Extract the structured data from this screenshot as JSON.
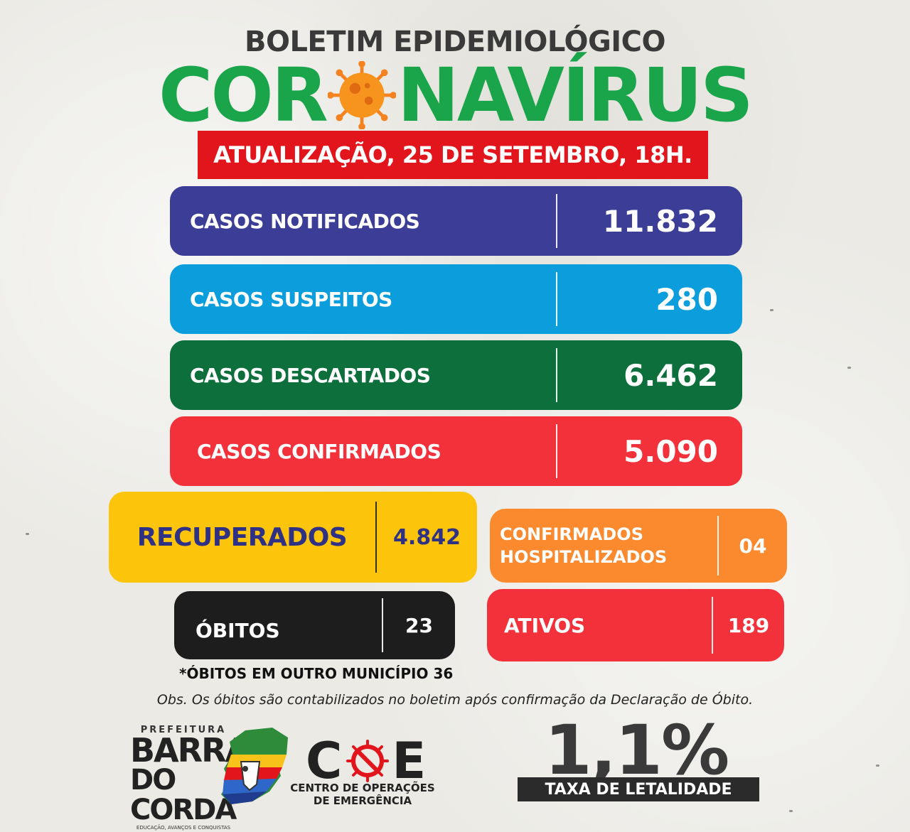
{
  "header": {
    "bulletin_title": "BOLETIM EPIDEMIOLÓGICO",
    "word_left": "COR",
    "word_right": "NAVÍRUS",
    "update": "ATUALIZAÇÃO, 25 DE SETEMBRO, 18H."
  },
  "rows": [
    {
      "label": "CASOS NOTIFICADOS",
      "value": "11.832",
      "color": "#3b3d96"
    },
    {
      "label": "CASOS SUSPEITOS",
      "value": "280",
      "color": "#0b9ddc"
    },
    {
      "label": "CASOS DESCARTADOS",
      "value": "6.462",
      "color": "#0d6f3c"
    },
    {
      "label": "CASOS CONFIRMADOS",
      "value": "5.090",
      "color": "#f2313b"
    }
  ],
  "recuperados": {
    "label": "RECUPERADOS",
    "value": "4.842",
    "color": "#fcc50b",
    "text_color": "#2f3184"
  },
  "hospitalizados": {
    "label_line1": "CONFIRMADOS",
    "label_line2": "HOSPITALIZADOS",
    "value": "04",
    "color": "#fb8a2e"
  },
  "obitos": {
    "label": "ÓBITOS",
    "value": "23",
    "color": "#1d1d1d"
  },
  "ativos": {
    "label": "ATIVOS",
    "value": "189",
    "color": "#f2313b"
  },
  "notes": {
    "outro_municipio": "*ÓBITOS EM OUTRO MUNICÍPIO  36",
    "obs": "Obs. Os óbitos são contabilizados no boletim após confirmação da Declaração de Óbito."
  },
  "footer": {
    "prefeitura": "PREFEITURA",
    "barra": "BARRA",
    "do_corda": "DO CORDA",
    "tagline": "EDUCAÇÃO, AVANÇOS E CONQUISTAS",
    "coe_c": "C",
    "coe_e": "E",
    "coe_line1": "CENTRO DE OPERAÇÕES",
    "coe_line2": "DE EMERGÊNCIA",
    "rate_value": "1,1%",
    "rate_label": "TAXA DE LETALIDADE"
  },
  "icons": [
    "coronavirus-icon",
    "barra-do-corda-map-icon",
    "coe-virus-icon"
  ]
}
